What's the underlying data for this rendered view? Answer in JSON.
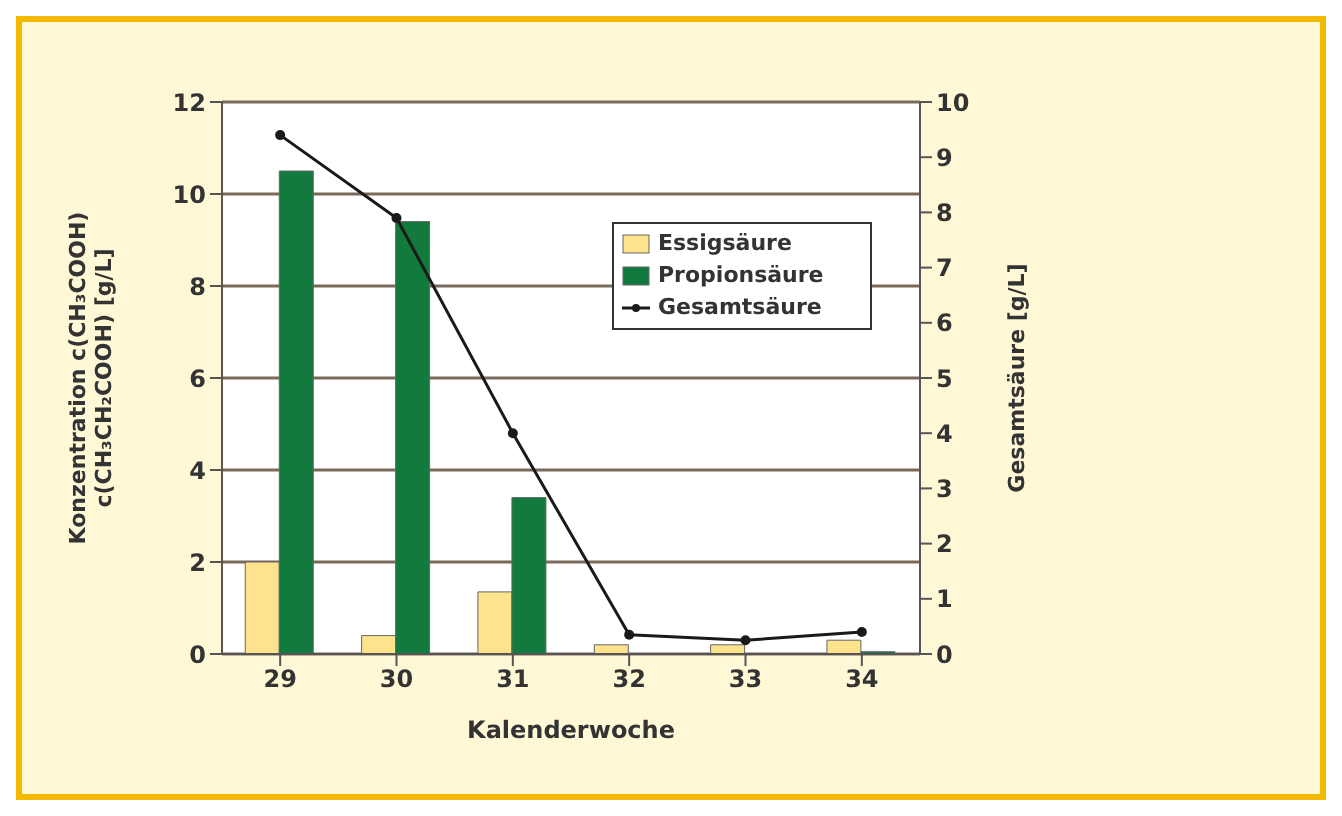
{
  "chart_data": {
    "type": "bar",
    "categories": [
      "29",
      "30",
      "31",
      "32",
      "33",
      "34"
    ],
    "xlabel": "Kalenderwoche",
    "ylabel": "Konzentration c(CH₃COOH)\nc(CH₃CH₂COOH) [g/L]",
    "y2label": "Gesamtsäure [g/L]",
    "series": [
      {
        "name": "Essigsäure",
        "color": "#fde48c",
        "values": [
          2.0,
          0.4,
          1.35,
          0.2,
          0.2,
          0.3
        ]
      },
      {
        "name": "Propionsäure",
        "color": "#127a3c",
        "values": [
          10.5,
          9.4,
          3.4,
          0,
          0,
          0.05
        ]
      },
      {
        "name": "Gesamtsäure",
        "type": "line",
        "axis": "y2",
        "color": "#1a1a1a",
        "marker": "circle",
        "values": [
          9.4,
          7.9,
          4.0,
          0.35,
          0.25,
          0.4
        ]
      }
    ],
    "ylim": [
      0,
      12
    ],
    "yticks": [
      0,
      2,
      4,
      6,
      8,
      10,
      12
    ],
    "y2lim": [
      0,
      10
    ],
    "y2ticks": [
      0,
      1,
      2,
      3,
      4,
      5,
      6,
      7,
      8,
      9,
      10
    ],
    "grid": "y",
    "legend": "top right"
  }
}
